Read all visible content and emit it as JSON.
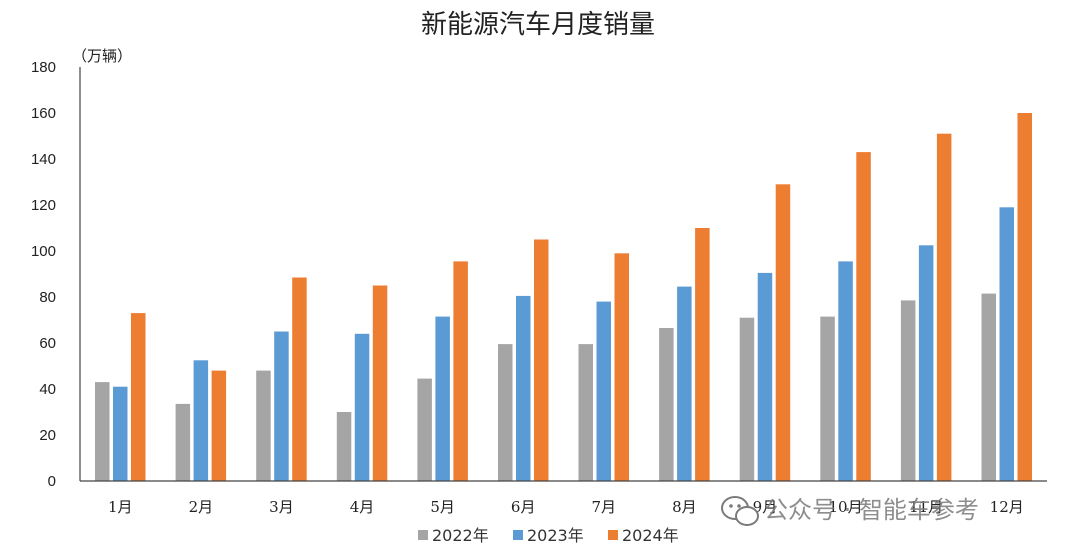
{
  "chart_data": {
    "type": "bar",
    "title": "新能源汽车月度销量",
    "ylabel": "（万辆）",
    "xlabel": "",
    "categories": [
      "1月",
      "2月",
      "3月",
      "4月",
      "5月",
      "6月",
      "7月",
      "8月",
      "9月",
      "10月",
      "11月",
      "12月"
    ],
    "ylim": [
      0,
      180
    ],
    "yticks": [
      0,
      20,
      40,
      60,
      80,
      100,
      120,
      140,
      160,
      180
    ],
    "grid": false,
    "legend_position": "bottom",
    "series": [
      {
        "name": "2022年",
        "color": "#a5a5a5",
        "values": [
          43,
          33.5,
          48,
          30,
          44.5,
          59.5,
          59.5,
          66.5,
          71,
          71.5,
          78.5,
          81.5
        ]
      },
      {
        "name": "2023年",
        "color": "#5b9bd5",
        "values": [
          41,
          52.5,
          65,
          64,
          71.5,
          80.5,
          78,
          84.5,
          90.5,
          95.5,
          102.5,
          119
        ]
      },
      {
        "name": "2024年",
        "color": "#ed7d31",
        "values": [
          73,
          48,
          88.5,
          85,
          95.5,
          105,
          99,
          110,
          129,
          143,
          151,
          160
        ]
      }
    ]
  },
  "watermark": {
    "icon": "wechat-icon",
    "text": "公众号 · 智能车参考"
  }
}
